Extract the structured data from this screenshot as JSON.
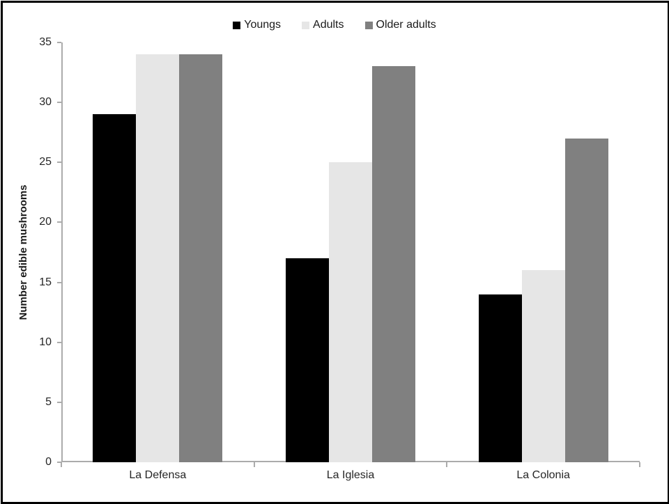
{
  "chart_data": {
    "type": "bar",
    "title": "",
    "xlabel": "",
    "ylabel": "Number edible mushrooms",
    "categories": [
      "La Defensa",
      "La Iglesia",
      "La Colonia"
    ],
    "series": [
      {
        "name": "Youngs",
        "color": "#000000",
        "values": [
          29,
          17,
          14
        ]
      },
      {
        "name": "Adults",
        "color": "#e6e6e6",
        "values": [
          34,
          25,
          16
        ]
      },
      {
        "name": "Older adults",
        "color": "#808080",
        "values": [
          34,
          33,
          27
        ]
      }
    ],
    "ylim": [
      0,
      35
    ],
    "yticks": [
      0,
      5,
      10,
      15,
      20,
      25,
      30,
      35
    ],
    "grid": false,
    "legend_position": "top"
  },
  "colors": {
    "axis": "#ababab",
    "text": "#262626",
    "frame_border": "#000000",
    "background": "#ffffff"
  }
}
